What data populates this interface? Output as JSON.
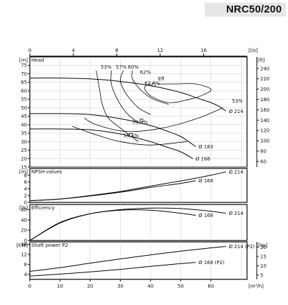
{
  "model": "NRC50/200",
  "axes": {
    "top_units": "[l/s]",
    "bottom_units": "[m³/h]",
    "top_ticks": [
      "0",
      "4",
      "8",
      "12",
      "16"
    ],
    "bottom_ticks": [
      "0",
      "10",
      "20",
      "30",
      "40",
      "50",
      "60"
    ],
    "head_left_units": "[m]",
    "head_right_units": "[ft]",
    "npsh_units": "[m]",
    "eff_units": "[%]",
    "power_left_units": "[kW]",
    "power_right_units": "[hp]"
  },
  "chart_data": [
    {
      "type": "line",
      "title": "Head",
      "xlabel": "[m³/h]",
      "ylabel": "[m]",
      "xlim": [
        0,
        72
      ],
      "ylim": [
        15,
        80
      ],
      "y_ticks": [
        15,
        20,
        25,
        30,
        35,
        40,
        45,
        50,
        55,
        60,
        65,
        70,
        75
      ],
      "y2_label": "[ft]",
      "y2_ticks": [
        60,
        80,
        100,
        120,
        140,
        160,
        180,
        200,
        220,
        240
      ],
      "series": [
        {
          "name": "Ø 214",
          "x": [
            0,
            10,
            20,
            30,
            40,
            50,
            55,
            60,
            63,
            65
          ],
          "y": [
            67.5,
            67.5,
            67,
            65.5,
            63,
            59,
            56,
            53,
            50.5,
            48
          ]
        },
        {
          "name": "Ø 183",
          "x": [
            0,
            10,
            20,
            30,
            40,
            45,
            50,
            55
          ],
          "y": [
            46.5,
            46.5,
            46,
            43.5,
            39.5,
            36.5,
            33,
            27
          ]
        },
        {
          "name": "Ø 168",
          "x": [
            0,
            10,
            20,
            30,
            40,
            45,
            50,
            54
          ],
          "y": [
            37.5,
            37.5,
            37,
            34.5,
            30,
            27,
            24,
            20
          ]
        }
      ],
      "efficiency_isolines": [
        "53%",
        "57%",
        "60%",
        "62%",
        "62,8%",
        "59,3%",
        "55,5%",
        "53%"
      ],
      "annotations": [
        "Eff"
      ]
    },
    {
      "type": "line",
      "title": "NPSH-values",
      "xlabel": "[m³/h]",
      "ylabel": "[m]",
      "xlim": [
        0,
        72
      ],
      "ylim": [
        0,
        10
      ],
      "y_ticks": [
        0,
        2,
        4,
        6,
        8
      ],
      "series": [
        {
          "name": "Ø 214",
          "x": [
            0,
            10,
            20,
            30,
            40,
            50,
            60,
            65
          ],
          "y": [
            0.5,
            1.0,
            2.0,
            3.2,
            4.8,
            6.3,
            8.0,
            9.0
          ]
        },
        {
          "name": "Ø 168",
          "x": [
            0,
            10,
            20,
            30,
            40,
            50,
            55
          ],
          "y": [
            0.5,
            1.0,
            1.9,
            3.0,
            4.4,
            5.6,
            6.4
          ]
        }
      ]
    },
    {
      "type": "line",
      "title": "Efficiency",
      "xlabel": "[m³/h]",
      "ylabel": "[%]",
      "xlim": [
        0,
        72
      ],
      "ylim": [
        0,
        70
      ],
      "y_ticks": [
        0,
        20,
        40,
        60
      ],
      "series": [
        {
          "name": "Ø 214",
          "x": [
            0,
            10,
            20,
            30,
            40,
            50,
            60,
            65
          ],
          "y": [
            0,
            35,
            52,
            60,
            63,
            62,
            57,
            53
          ]
        },
        {
          "name": "Ø 168",
          "x": [
            0,
            10,
            20,
            30,
            40,
            50,
            55
          ],
          "y": [
            0,
            34,
            52,
            59,
            59,
            53,
            49
          ]
        }
      ]
    },
    {
      "type": "line",
      "title": "Shaft power P2",
      "xlabel": "[m³/h]",
      "ylabel": "[kW]",
      "xlim": [
        0,
        72
      ],
      "ylim": [
        2,
        17
      ],
      "y_ticks": [
        4,
        8,
        12,
        16
      ],
      "y2_label": "[hp]",
      "y2_ticks": [
        5,
        10,
        15,
        20
      ],
      "series": [
        {
          "name": "Ø 214 (P2)",
          "x": [
            0,
            10,
            20,
            30,
            40,
            50,
            60,
            65
          ],
          "y": [
            5.2,
            6.7,
            8.5,
            10.2,
            11.8,
            13.3,
            14.6,
            15.2
          ]
        },
        {
          "name": "Ø 168 (P2)",
          "x": [
            0,
            10,
            20,
            30,
            40,
            50,
            55
          ],
          "y": [
            3.3,
            4.1,
            5.0,
            6.0,
            7.2,
            8.3,
            8.8
          ]
        }
      ]
    }
  ]
}
